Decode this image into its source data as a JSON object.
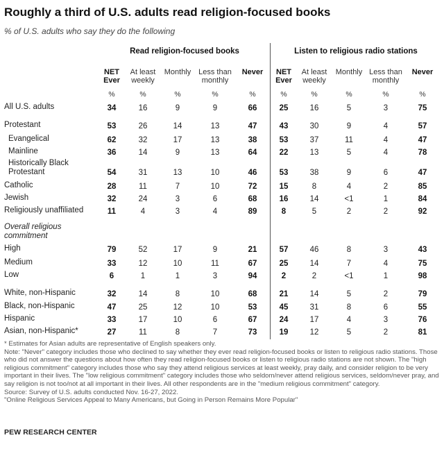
{
  "title": "Roughly a third of U.S. adults read religion-focused books",
  "subtitle": "% of U.S. adults who say they do the following",
  "groups": {
    "books": "Read religion-focused books",
    "radio": "Listen to religious radio stations"
  },
  "columns": [
    "NET\nEver",
    "At least\nweekly",
    "Monthly",
    "Less than\nmonthly",
    "Never",
    "NET\nEver",
    "At least\nweekly",
    "Monthly",
    "Less than\nmonthly",
    "Never"
  ],
  "pct_symbol": "%",
  "rows": [
    {
      "label": "All U.S. adults",
      "values": [
        "34",
        "16",
        "9",
        "9",
        "66",
        "25",
        "16",
        "5",
        "3",
        "75"
      ]
    },
    {
      "label": "Protestant",
      "values": [
        "53",
        "26",
        "14",
        "13",
        "47",
        "43",
        "30",
        "9",
        "4",
        "57"
      ]
    },
    {
      "label": "Evangelical",
      "values": [
        "62",
        "32",
        "17",
        "13",
        "38",
        "53",
        "37",
        "11",
        "4",
        "47"
      ]
    },
    {
      "label": "Mainline",
      "values": [
        "36",
        "14",
        "9",
        "13",
        "64",
        "22",
        "13",
        "5",
        "4",
        "78"
      ]
    },
    {
      "label": "Historically Black\nProtestant",
      "values": [
        "54",
        "31",
        "13",
        "10",
        "46",
        "53",
        "38",
        "9",
        "6",
        "47"
      ]
    },
    {
      "label": "Catholic",
      "values": [
        "28",
        "11",
        "7",
        "10",
        "72",
        "15",
        "8",
        "4",
        "2",
        "85"
      ]
    },
    {
      "label": "Jewish",
      "values": [
        "32",
        "24",
        "3",
        "6",
        "68",
        "16",
        "14",
        "<1",
        "1",
        "84"
      ]
    },
    {
      "label": "Religiously unaffiliated",
      "values": [
        "11",
        "4",
        "3",
        "4",
        "89",
        "8",
        "5",
        "2",
        "2",
        "92"
      ]
    },
    {
      "label": "Overall religious\ncommitment",
      "values": []
    },
    {
      "label": "High",
      "values": [
        "79",
        "52",
        "17",
        "9",
        "21",
        "57",
        "46",
        "8",
        "3",
        "43"
      ]
    },
    {
      "label": "Medium",
      "values": [
        "33",
        "12",
        "10",
        "11",
        "67",
        "25",
        "14",
        "7",
        "4",
        "75"
      ]
    },
    {
      "label": "Low",
      "values": [
        "6",
        "1",
        "1",
        "3",
        "94",
        "2",
        "2",
        "<1",
        "1",
        "98"
      ]
    },
    {
      "label": "White, non-Hispanic",
      "values": [
        "32",
        "14",
        "8",
        "10",
        "68",
        "21",
        "14",
        "5",
        "2",
        "79"
      ]
    },
    {
      "label": "Black, non-Hispanic",
      "values": [
        "47",
        "25",
        "12",
        "10",
        "53",
        "45",
        "31",
        "8",
        "6",
        "55"
      ]
    },
    {
      "label": "Hispanic",
      "values": [
        "33",
        "17",
        "10",
        "6",
        "67",
        "24",
        "17",
        "4",
        "3",
        "76"
      ]
    },
    {
      "label": "Asian, non-Hispanic*",
      "values": [
        "27",
        "11",
        "8",
        "7",
        "73",
        "19",
        "12",
        "5",
        "2",
        "81"
      ]
    }
  ],
  "footnotes": [
    "* Estimates for Asian adults are representative of English speakers only.",
    "Note: \"Never\" category includes those who declined to say whether they ever read religion-focused books or listen to religious radio stations. Those who did not answer the questions about how often they read religion-focused books or listen to religious radio stations are not shown. The \"high religious commitment\" category includes those who say they attend religious services at least weekly, pray daily, and consider religion to be very important in their lives. The \"low religious commitment\" category includes those who seldom/never attend religious services, seldom/never pray, and say religion is not too/not at all important in their lives. All other respondents are in the \"medium religious commitment\" category.",
    "Source: Survey of U.S. adults conducted Nov. 16-27, 2022.",
    "\"Online Religious Services Appeal to Many Americans, but Going in Person Remains More Popular\""
  ],
  "brand": "PEW RESEARCH CENTER"
}
